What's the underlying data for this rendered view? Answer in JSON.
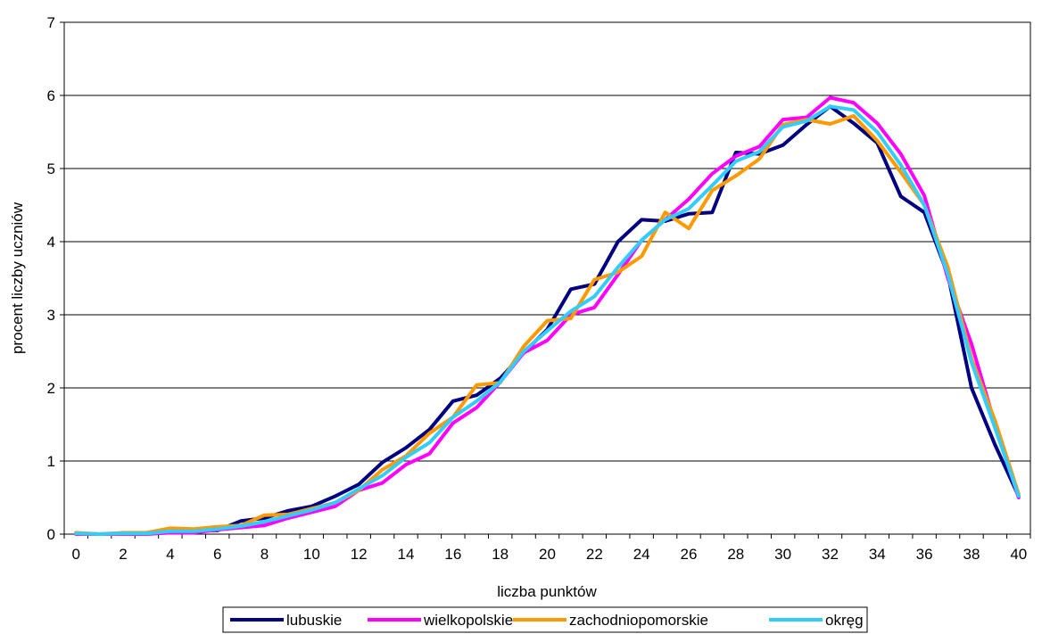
{
  "chart_data": {
    "type": "line",
    "xlabel": "liczba punktów",
    "ylabel": "procent liczby uczniów",
    "xlim": [
      0,
      40
    ],
    "ylim": [
      0,
      7
    ],
    "x_ticks": [
      "0",
      "2",
      "4",
      "6",
      "8",
      "10",
      "12",
      "14",
      "16",
      "18",
      "20",
      "22",
      "24",
      "26",
      "28",
      "30",
      "32",
      "34",
      "36",
      "38",
      "40"
    ],
    "y_ticks": [
      "0",
      "1",
      "2",
      "3",
      "4",
      "5",
      "6",
      "7"
    ],
    "grid": "horizontal",
    "legend_position": "bottom",
    "x": [
      0,
      1,
      2,
      3,
      4,
      5,
      6,
      7,
      8,
      9,
      10,
      11,
      12,
      13,
      14,
      15,
      16,
      17,
      18,
      19,
      20,
      21,
      22,
      23,
      24,
      25,
      26,
      27,
      28,
      29,
      30,
      31,
      32,
      33,
      34,
      35,
      36,
      37,
      38,
      39,
      40
    ],
    "series": [
      {
        "name": "lubuskie",
        "color": "#000080",
        "values": [
          0.01,
          0.0,
          0.01,
          0.01,
          0.03,
          0.05,
          0.05,
          0.18,
          0.22,
          0.32,
          0.38,
          0.52,
          0.68,
          0.98,
          1.18,
          1.43,
          1.82,
          1.9,
          2.13,
          2.48,
          2.8,
          3.35,
          3.42,
          4.0,
          4.3,
          4.28,
          4.38,
          4.4,
          5.22,
          5.2,
          5.32,
          5.6,
          5.85,
          5.62,
          5.35,
          4.62,
          4.4,
          3.55,
          2.0,
          1.22,
          0.52
        ]
      },
      {
        "name": "wielkopolskie",
        "color": "#FF00FF",
        "values": [
          0.0,
          0.0,
          0.0,
          0.0,
          0.02,
          0.02,
          0.06,
          0.09,
          0.12,
          0.22,
          0.3,
          0.38,
          0.6,
          0.7,
          0.95,
          1.1,
          1.52,
          1.73,
          2.08,
          2.48,
          2.65,
          3.0,
          3.1,
          3.55,
          4.02,
          4.3,
          4.58,
          4.93,
          5.17,
          5.3,
          5.67,
          5.7,
          5.97,
          5.9,
          5.62,
          5.2,
          4.63,
          3.5,
          2.6,
          1.5,
          0.5
        ]
      },
      {
        "name": "zachodniopomorskie",
        "color": "#FF9900",
        "values": [
          0.02,
          0.0,
          0.02,
          0.02,
          0.08,
          0.07,
          0.1,
          0.12,
          0.26,
          0.27,
          0.35,
          0.43,
          0.6,
          0.88,
          1.07,
          1.38,
          1.6,
          2.04,
          2.07,
          2.57,
          2.92,
          2.95,
          3.48,
          3.58,
          3.8,
          4.4,
          4.18,
          4.7,
          4.9,
          5.13,
          5.6,
          5.67,
          5.61,
          5.72,
          5.38,
          4.95,
          4.5,
          3.65,
          2.4,
          1.55,
          0.55
        ]
      },
      {
        "name": "okręg",
        "color": "#33CCFF",
        "values": [
          0.01,
          0.0,
          0.01,
          0.01,
          0.04,
          0.04,
          0.07,
          0.11,
          0.17,
          0.25,
          0.33,
          0.43,
          0.62,
          0.8,
          1.05,
          1.25,
          1.6,
          1.82,
          2.08,
          2.5,
          2.78,
          3.05,
          3.25,
          3.65,
          4.02,
          4.3,
          4.45,
          4.77,
          5.1,
          5.23,
          5.57,
          5.65,
          5.85,
          5.8,
          5.5,
          5.05,
          4.5,
          3.55,
          2.35,
          1.45,
          0.52
        ]
      }
    ]
  }
}
